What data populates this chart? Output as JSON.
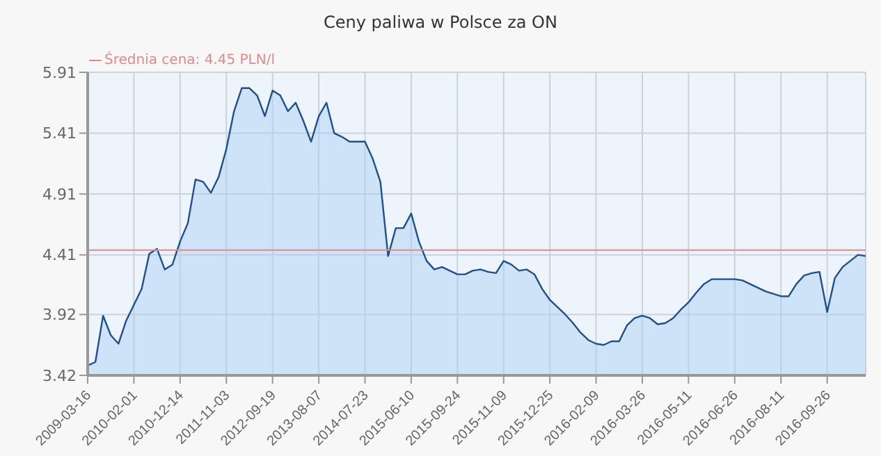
{
  "chart_data": {
    "type": "area",
    "title": "Ceny paliwa w Polsce za ON",
    "categories": [
      "2009-03-16",
      null,
      null,
      null,
      null,
      null,
      "2010-02-01",
      null,
      null,
      null,
      null,
      null,
      "2010-12-14",
      null,
      null,
      null,
      null,
      null,
      "2011-11-03",
      null,
      null,
      null,
      null,
      null,
      "2012-09-19",
      null,
      null,
      null,
      null,
      null,
      "2013-08-07",
      null,
      null,
      null,
      null,
      null,
      "2014-07-23",
      null,
      null,
      null,
      null,
      null,
      "2015-06-10",
      null,
      null,
      null,
      null,
      null,
      "2015-09-24",
      null,
      null,
      null,
      null,
      null,
      "2015-11-09",
      null,
      null,
      null,
      null,
      null,
      "2015-12-25",
      null,
      null,
      null,
      null,
      null,
      "2016-02-09",
      null,
      null,
      null,
      null,
      null,
      "2016-03-26",
      null,
      null,
      null,
      null,
      null,
      "2016-05-11",
      null,
      null,
      null,
      null,
      null,
      "2016-06-26",
      null,
      null,
      null,
      null,
      null,
      "2016-08-11",
      null,
      null,
      null,
      null,
      null,
      "2016-09-26",
      null,
      null,
      null,
      null,
      null
    ],
    "series": [
      {
        "color": "#1d4f91",
        "values": [
          3.5,
          3.53,
          3.91,
          3.75,
          3.68,
          3.87,
          4.0,
          4.13,
          4.42,
          4.46,
          4.29,
          4.33,
          4.52,
          4.67,
          5.03,
          5.01,
          4.92,
          5.05,
          5.28,
          5.59,
          5.78,
          5.78,
          5.72,
          5.55,
          5.76,
          5.72,
          5.59,
          5.66,
          5.51,
          5.34,
          5.55,
          5.66,
          5.41,
          5.38,
          5.34,
          5.34,
          5.34,
          5.2,
          5.01,
          4.4,
          4.63,
          4.63,
          4.75,
          4.52,
          4.36,
          4.29,
          4.31,
          4.28,
          4.25,
          4.25,
          4.28,
          4.29,
          4.27,
          4.26,
          4.36,
          4.33,
          4.28,
          4.29,
          4.25,
          4.13,
          4.04,
          3.98,
          3.92,
          3.85,
          3.77,
          3.71,
          3.68,
          3.67,
          3.7,
          3.7,
          3.83,
          3.89,
          3.91,
          3.89,
          3.84,
          3.85,
          3.89,
          3.96,
          4.02,
          4.1,
          4.17,
          4.21,
          4.21,
          4.21,
          4.21,
          4.2,
          4.17,
          4.14,
          4.11,
          4.09,
          4.07,
          4.07,
          4.17,
          4.24,
          4.26,
          4.27,
          3.94,
          4.22,
          4.31,
          4.36,
          4.41,
          4.4
        ]
      }
    ],
    "ylim": [
      3.42,
      5.91
    ],
    "yticks": [
      3.42,
      3.92,
      4.41,
      4.91,
      5.41,
      5.91
    ],
    "grid": true,
    "ref_lines": [
      {
        "axis": "y",
        "value": 4.45,
        "label": "Średnia cena: 4.45 PLN/l",
        "color": "#e08a8a"
      }
    ]
  }
}
